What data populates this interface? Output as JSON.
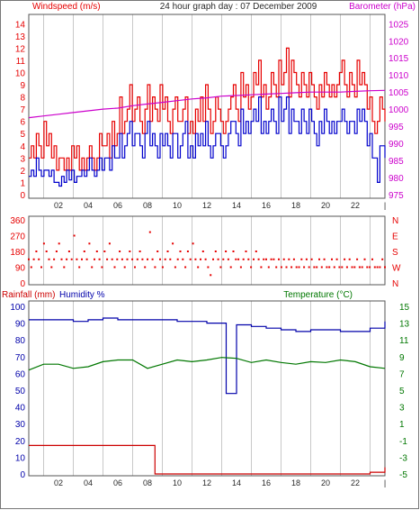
{
  "title": "24 hour graph day : 07 December 2009",
  "colors": {
    "wind": "#e60000",
    "gust_low": "#0000cc",
    "baro": "#cc00cc",
    "dir": "#e60000",
    "humidity": "#0000aa",
    "temperature": "#007700",
    "rain": "#cc0000",
    "grid": "#c8c8c8",
    "axis_text": "#2a2a2a"
  },
  "chart_data": [
    {
      "type": "line",
      "title": "24 hour graph day : 07 December 2009",
      "left_axis_label": "Windspeed (m/s)",
      "right_axis_label": "Barometer (hPa)",
      "ylim_left": [
        0,
        14
      ],
      "ylim_right": [
        975,
        1025
      ],
      "yticks_left": [
        0,
        1,
        2,
        3,
        4,
        5,
        6,
        7,
        8,
        9,
        10,
        11,
        12,
        13,
        14
      ],
      "yticks_right": [
        975,
        980,
        985,
        990,
        995,
        1000,
        1005,
        1010,
        1015,
        1020,
        1025
      ],
      "xticks": [
        "02",
        "04",
        "06",
        "08",
        "10",
        "12",
        "14",
        "16",
        "18",
        "20",
        "22",
        "|"
      ],
      "series": [
        {
          "name": "Windspeed (m/s)",
          "axis": "left",
          "step": true,
          "color": "#e60000",
          "values": [
            3,
            4,
            3,
            5,
            4,
            3,
            6,
            4,
            5,
            3,
            4,
            2,
            3,
            3,
            2,
            3,
            2,
            4,
            3,
            4,
            2,
            3,
            2,
            3,
            4,
            3,
            2,
            3,
            5,
            4,
            4,
            5,
            3,
            6,
            4,
            5,
            8,
            5,
            6,
            7,
            9,
            6,
            7,
            8,
            6,
            5,
            7,
            9,
            6,
            8,
            7,
            6,
            9,
            7,
            8,
            6,
            5,
            7,
            8,
            6,
            6,
            7,
            8,
            5,
            6,
            5,
            7,
            6,
            8,
            6,
            9,
            7,
            5,
            6,
            8,
            7,
            6,
            5,
            6,
            7,
            8,
            9,
            7,
            6,
            10,
            8,
            9,
            7,
            8,
            10,
            9,
            11,
            8,
            9,
            7,
            8,
            10,
            9,
            8,
            11,
            9,
            10,
            12,
            8,
            11,
            10,
            9,
            8,
            10,
            9,
            8,
            10,
            9,
            8,
            7,
            9,
            8,
            10,
            9,
            8,
            9,
            8,
            9,
            10,
            11,
            9,
            8,
            10,
            9,
            8,
            11,
            9,
            10,
            9,
            7,
            8,
            6,
            5,
            6,
            8,
            7,
            6
          ]
        },
        {
          "name": "",
          "axis": "left",
          "step": true,
          "color": "#0000cc",
          "values": [
            1.5,
            2,
            1.5,
            3,
            2,
            1.5,
            2,
            2,
            1.5,
            2,
            1,
            1,
            0.7,
            1.5,
            1,
            2,
            1.2,
            2,
            1,
            1.5,
            1.5,
            2,
            1.5,
            2,
            3,
            2,
            1.5,
            2,
            3,
            2,
            3,
            3,
            2,
            4,
            3,
            3,
            5,
            3,
            4,
            5,
            6,
            4,
            5,
            5,
            4,
            3,
            5,
            6,
            4,
            5,
            4,
            3,
            5,
            4,
            5,
            4,
            3,
            5,
            5,
            3,
            4,
            5,
            6,
            3,
            4,
            3,
            5,
            4,
            5,
            4,
            6,
            4,
            3,
            4,
            5,
            5,
            4,
            3,
            4,
            5,
            6,
            6,
            5,
            4,
            7,
            5,
            6,
            5,
            6,
            7,
            6,
            8,
            5,
            6,
            5,
            6,
            7,
            6,
            5,
            8,
            6,
            7,
            8,
            5,
            7,
            6,
            6,
            5,
            7,
            6,
            5,
            7,
            6,
            5,
            4,
            6,
            5,
            7,
            6,
            5,
            6,
            5,
            6,
            6,
            7,
            6,
            5,
            6,
            6,
            5,
            7,
            6,
            7,
            6,
            4,
            5,
            3,
            3,
            1,
            4,
            4,
            3
          ]
        },
        {
          "name": "Barometer (hPa)",
          "axis": "right",
          "step": false,
          "color": "#cc00cc",
          "x": [
            0,
            1,
            2,
            3,
            4,
            5,
            6,
            7,
            8,
            9,
            10,
            11,
            12,
            13,
            14,
            15,
            16,
            17,
            18,
            19,
            20,
            21,
            22,
            23,
            24
          ],
          "values": [
            997.5,
            998,
            998.5,
            999,
            999.5,
            1000,
            1000.3,
            1001,
            1001.5,
            1002,
            1002.5,
            1003,
            1003.3,
            1003.8,
            1004,
            1004.2,
            1004.4,
            1004.6,
            1004.8,
            1005,
            1005,
            1005,
            1005.2,
            1005.4,
            1005.5
          ]
        }
      ]
    },
    {
      "type": "scatter",
      "left_axis_label": "",
      "yticks_left": [
        0,
        90,
        180,
        270,
        360
      ],
      "right_labels": [
        "N",
        "W",
        "S",
        "E",
        "N"
      ],
      "ylim": [
        0,
        360
      ],
      "series": [
        {
          "name": "",
          "color": "#e60000",
          "values": [
            135,
            90,
            135,
            180,
            135,
            90,
            225,
            180,
            135,
            90,
            135,
            180,
            225,
            135,
            90,
            135,
            180,
            135,
            270,
            135,
            90,
            135,
            180,
            135,
            225,
            90,
            135,
            180,
            135,
            90,
            180,
            135,
            225,
            135,
            90,
            135,
            180,
            135,
            90,
            135,
            180,
            135,
            90,
            135,
            180,
            135,
            90,
            135,
            290,
            135,
            90,
            180,
            135,
            90,
            135,
            180,
            135,
            225,
            90,
            135,
            180,
            135,
            90,
            180,
            135,
            225,
            135,
            90,
            135,
            180,
            135,
            90,
            45,
            135,
            180,
            135,
            90,
            135,
            180,
            135,
            90,
            180,
            135,
            135,
            90,
            135,
            180,
            135,
            90,
            135,
            180,
            135,
            90,
            135,
            135,
            90,
            135,
            135,
            90,
            135,
            90,
            135,
            90,
            135,
            90,
            135,
            90,
            90,
            135,
            90,
            135,
            90,
            135,
            90,
            90,
            135,
            90,
            135,
            90,
            90,
            135,
            90,
            135,
            90,
            90,
            135,
            90,
            135,
            90,
            90,
            135,
            90,
            90,
            135,
            90,
            90,
            135,
            90,
            90,
            90,
            135,
            90
          ]
        }
      ]
    },
    {
      "type": "line",
      "left_axis_label_a": "Rainfall (mm)",
      "left_axis_label_b": "Humidity %",
      "right_axis_label": "Temperature (°C)",
      "ylim_left": [
        0,
        100
      ],
      "ylim_right": [
        -5,
        15
      ],
      "yticks_left": [
        0,
        10,
        20,
        30,
        40,
        50,
        60,
        70,
        80,
        90,
        100
      ],
      "yticks_right": [
        -5,
        -3,
        -1,
        1,
        3,
        5,
        7,
        9,
        11,
        13,
        15
      ],
      "xticks": [
        "02",
        "04",
        "06",
        "08",
        "10",
        "12",
        "14",
        "16",
        "18",
        "20",
        "22",
        "|"
      ],
      "series": [
        {
          "name": "Humidity %",
          "axis": "left",
          "step": true,
          "color": "#0000aa",
          "x": [
            0,
            1,
            2,
            3,
            4,
            5,
            6,
            7,
            8,
            9,
            10,
            11,
            12,
            13,
            13.3,
            14,
            15,
            16,
            17,
            18,
            19,
            20,
            21,
            22,
            23,
            24
          ],
          "values": [
            92,
            92,
            92,
            91,
            92,
            93,
            92,
            92,
            92,
            92,
            91,
            91,
            90,
            90,
            48,
            89,
            88,
            87,
            86,
            85,
            86,
            86,
            85,
            85,
            87,
            91
          ]
        },
        {
          "name": "Temperature (°C)",
          "axis": "right",
          "step": false,
          "color": "#007700",
          "x": [
            0,
            1,
            2,
            3,
            4,
            5,
            6,
            7,
            8,
            9,
            10,
            11,
            12,
            13,
            14,
            15,
            16,
            17,
            18,
            19,
            20,
            21,
            22,
            23,
            24
          ],
          "values": [
            7.4,
            8.1,
            8.1,
            7.6,
            7.8,
            8.4,
            8.6,
            8.6,
            7.6,
            8.1,
            8.6,
            8.4,
            8.6,
            8.9,
            8.8,
            8.3,
            8.6,
            8.3,
            8.1,
            8.4,
            8.3,
            8.6,
            8.4,
            7.8,
            7.6
          ]
        },
        {
          "name": "Rainfall (mm)",
          "axis": "left",
          "step": true,
          "color": "#cc0000",
          "x": [
            0,
            8.5,
            8.5,
            22,
            23,
            24
          ],
          "values": [
            17,
            17,
            0,
            0,
            1,
            4
          ]
        }
      ]
    }
  ]
}
